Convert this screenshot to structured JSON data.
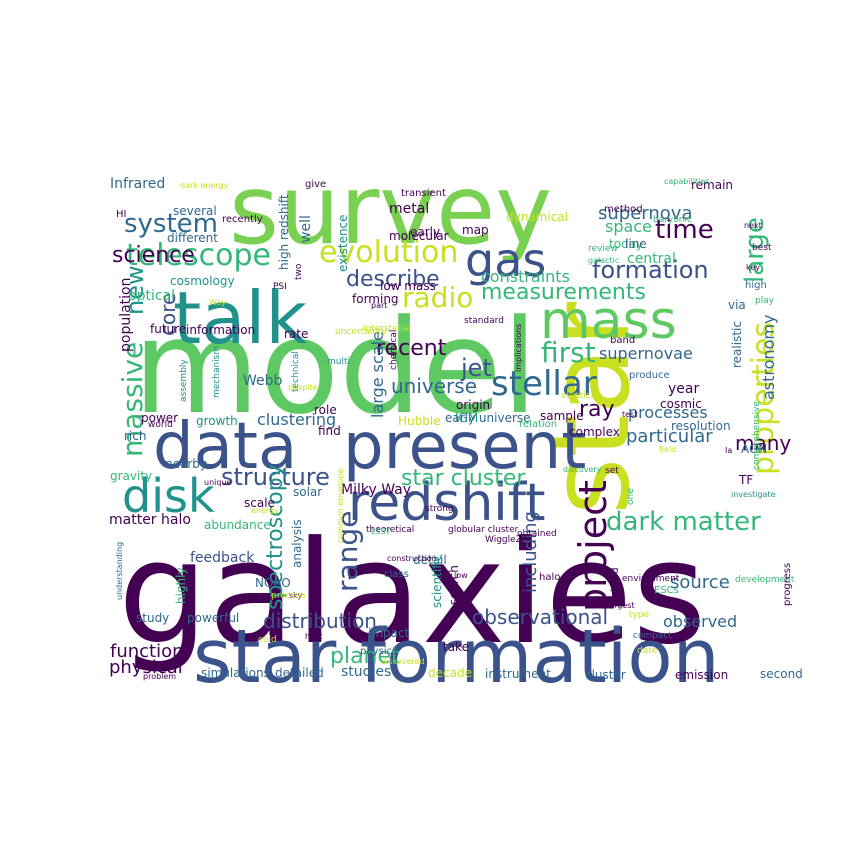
{
  "palette": {
    "dark_purple": "#440154",
    "indigo": "#3b528b",
    "blue": "#31688e",
    "teal": "#21918c",
    "green": "#35b779",
    "light_green": "#5ec962",
    "lime": "#90d743",
    "yellow": "#c8e020",
    "bright_yellow": "#fde725"
  },
  "words": [
    {
      "text": "galaxies",
      "color": "#440154"
    },
    {
      "text": "model",
      "color": "#5ec962"
    },
    {
      "text": "star",
      "color": "#c8e020"
    },
    {
      "text": "survey",
      "color": "#7ad151"
    },
    {
      "text": "star formation",
      "color": "#3b528b"
    },
    {
      "text": "present",
      "color": "#3b528b"
    },
    {
      "text": "data",
      "color": "#3b528b"
    },
    {
      "text": "talk",
      "color": "#21918c"
    },
    {
      "text": "redshift",
      "color": "#3b528b"
    },
    {
      "text": "mass",
      "color": "#5ec962"
    },
    {
      "text": "disk",
      "color": "#21918c"
    },
    {
      "text": "gas",
      "color": "#3b528b"
    },
    {
      "text": "evolution",
      "color": "#c8e020"
    },
    {
      "text": "telescope",
      "color": "#35b779"
    },
    {
      "text": "stellar",
      "color": "#31688e"
    },
    {
      "text": "project",
      "color": "#440154"
    },
    {
      "text": "large",
      "color": "#35b779"
    },
    {
      "text": "properties",
      "color": "#c8e020"
    },
    {
      "text": "formation",
      "color": "#3b528b"
    },
    {
      "text": "system",
      "color": "#31688e"
    },
    {
      "text": "time",
      "color": "#440154"
    },
    {
      "text": "massive",
      "color": "#35b779"
    },
    {
      "text": "first",
      "color": "#35b779"
    },
    {
      "text": "radio",
      "color": "#c8e020"
    },
    {
      "text": "measurements",
      "color": "#35b779"
    },
    {
      "text": "dark matter",
      "color": "#35b779"
    },
    {
      "text": "structure",
      "color": "#3b528b"
    },
    {
      "text": "star cluster",
      "color": "#35b779"
    },
    {
      "text": "range",
      "color": "#3b528b"
    },
    {
      "text": "spectroscopy",
      "color": "#21918c"
    },
    {
      "text": "distribution",
      "color": "#3b528b"
    },
    {
      "text": "observational",
      "color": "#3b528b"
    },
    {
      "text": "planet",
      "color": "#35b779"
    },
    {
      "text": "science",
      "color": "#440154"
    },
    {
      "text": "new",
      "color": "#21918c"
    },
    {
      "text": "core",
      "color": "#3b528b"
    },
    {
      "text": "describe",
      "color": "#3b528b"
    },
    {
      "text": "recent",
      "color": "#440154"
    },
    {
      "text": "jet",
      "color": "#3b528b"
    },
    {
      "text": "universe",
      "color": "#31688e"
    },
    {
      "text": "ray",
      "color": "#440154"
    },
    {
      "text": "supernova",
      "color": "#31688e"
    },
    {
      "text": "supernovae",
      "color": "#31688e"
    },
    {
      "text": "including",
      "color": "#3b528b"
    },
    {
      "text": "source",
      "color": "#31688e"
    },
    {
      "text": "many",
      "color": "#440154"
    },
    {
      "text": "particular",
      "color": "#31688e"
    },
    {
      "text": "space",
      "color": "#35b779"
    },
    {
      "text": "function",
      "color": "#440154"
    },
    {
      "text": "physical",
      "color": "#440154"
    },
    {
      "text": "observed",
      "color": "#31688e"
    },
    {
      "text": "constraints",
      "color": "#35b779"
    },
    {
      "text": "astronomy",
      "color": "#31688e"
    },
    {
      "text": "clustering",
      "color": "#31688e"
    },
    {
      "text": "processes",
      "color": "#31688e"
    },
    {
      "text": "Webb",
      "color": "#31688e"
    },
    {
      "text": "matter halo",
      "color": "#440154"
    },
    {
      "text": "Milky Way",
      "color": "#440154"
    },
    {
      "text": "large scale",
      "color": "#31688e"
    },
    {
      "text": "Infrared",
      "color": "#31688e"
    },
    {
      "text": "high redshift",
      "color": "#31688e"
    },
    {
      "text": "optical",
      "color": "#35b779"
    },
    {
      "text": "cosmology",
      "color": "#21918c"
    },
    {
      "text": "well",
      "color": "#31688e"
    },
    {
      "text": "metal",
      "color": "#440154"
    },
    {
      "text": "year",
      "color": "#440154"
    },
    {
      "text": "central",
      "color": "#35b779"
    },
    {
      "text": "today",
      "color": "#35b779"
    },
    {
      "text": "recently",
      "color": "#440154"
    },
    {
      "text": "different",
      "color": "#31688e"
    },
    {
      "text": "several",
      "color": "#31688e"
    },
    {
      "text": "future",
      "color": "#440154"
    },
    {
      "text": "population",
      "color": "#440154"
    },
    {
      "text": "information",
      "color": "#440154"
    },
    {
      "text": "rate",
      "color": "#440154"
    },
    {
      "text": "growth",
      "color": "#21918c"
    },
    {
      "text": "power",
      "color": "#440154"
    },
    {
      "text": "rich",
      "color": "#31688e"
    },
    {
      "text": "gravity",
      "color": "#35b779"
    },
    {
      "text": "nearby",
      "color": "#31688e"
    },
    {
      "text": "scale",
      "color": "#440154"
    },
    {
      "text": "solar",
      "color": "#31688e"
    },
    {
      "text": "abundance",
      "color": "#35b779"
    },
    {
      "text": "feedback",
      "color": "#3b528b"
    },
    {
      "text": "detail",
      "color": "#31688e"
    },
    {
      "text": "NOAO",
      "color": "#31688e"
    },
    {
      "text": "study",
      "color": "#31688e"
    },
    {
      "text": "powerful",
      "color": "#31688e"
    },
    {
      "text": "simulations",
      "color": "#31688e"
    },
    {
      "text": "detailed",
      "color": "#31688e"
    },
    {
      "text": "studies",
      "color": "#31688e"
    },
    {
      "text": "decade",
      "color": "#c8e020"
    },
    {
      "text": "instrument",
      "color": "#31688e"
    },
    {
      "text": "cluster",
      "color": "#31688e"
    },
    {
      "text": "emission",
      "color": "#440154"
    },
    {
      "text": "second",
      "color": "#31688e"
    },
    {
      "text": "impact",
      "color": "#31688e"
    },
    {
      "text": "physics",
      "color": "#31688e"
    },
    {
      "text": "take",
      "color": "#440154"
    },
    {
      "text": "Hubble",
      "color": "#c8e020"
    },
    {
      "text": "early universe",
      "color": "#31688e"
    },
    {
      "text": "sample",
      "color": "#440154"
    },
    {
      "text": "origin",
      "color": "#440154"
    },
    {
      "text": "IGM",
      "color": "#21918c"
    },
    {
      "text": "relation",
      "color": "#35b779"
    },
    {
      "text": "complex",
      "color": "#440154"
    },
    {
      "text": "produce",
      "color": "#31688e"
    },
    {
      "text": "realistic",
      "color": "#31688e"
    },
    {
      "text": "cosmic",
      "color": "#440154"
    },
    {
      "text": "via",
      "color": "#31688e"
    },
    {
      "text": "high",
      "color": "#31688e"
    },
    {
      "text": "band",
      "color": "#440154"
    },
    {
      "text": "AGN",
      "color": "#31688e"
    },
    {
      "text": "TF",
      "color": "#440154"
    },
    {
      "text": "resolution",
      "color": "#31688e"
    },
    {
      "text": "role",
      "color": "#440154"
    },
    {
      "text": "find",
      "color": "#440154"
    },
    {
      "text": "early",
      "color": "#440154"
    },
    {
      "text": "molecular",
      "color": "#440154"
    },
    {
      "text": "map",
      "color": "#440154"
    },
    {
      "text": "dynamical",
      "color": "#c8e020"
    },
    {
      "text": "method",
      "color": "#440154"
    },
    {
      "text": "line",
      "color": "#31688e"
    },
    {
      "text": "remain",
      "color": "#440154"
    },
    {
      "text": "forming",
      "color": "#440154"
    },
    {
      "text": "low mass",
      "color": "#440154"
    },
    {
      "text": "existence",
      "color": "#21918c"
    },
    {
      "text": "transient",
      "color": "#440154"
    },
    {
      "text": "give",
      "color": "#440154"
    },
    {
      "text": "dark energy",
      "color": "#c8e020"
    },
    {
      "text": "HI",
      "color": "#440154"
    },
    {
      "text": "capabilities",
      "color": "#35b779"
    },
    {
      "text": "baryonic",
      "color": "#35b779"
    },
    {
      "text": "next",
      "color": "#440154"
    },
    {
      "text": "review",
      "color": "#35b779"
    },
    {
      "text": "best",
      "color": "#440154"
    },
    {
      "text": "galactic",
      "color": "#35b779"
    },
    {
      "text": "key",
      "color": "#440154"
    },
    {
      "text": "play",
      "color": "#35b779"
    },
    {
      "text": "Way",
      "color": "#c8e020"
    },
    {
      "text": "PSI",
      "color": "#440154"
    },
    {
      "text": "two",
      "color": "#440154"
    },
    {
      "text": "uncertainty",
      "color": "#c8e020"
    },
    {
      "text": "mechanism",
      "color": "#21918c"
    },
    {
      "text": "assembly",
      "color": "#21918c"
    },
    {
      "text": "despite",
      "color": "#c8e020"
    },
    {
      "text": "technical",
      "color": "#21918c"
    },
    {
      "text": "multi",
      "color": "#21918c"
    },
    {
      "text": "part",
      "color": "#440154"
    },
    {
      "text": "interstellar",
      "color": "#c8e020"
    },
    {
      "text": "standard",
      "color": "#440154"
    },
    {
      "text": "chemical",
      "color": "#440154"
    },
    {
      "text": "implications",
      "color": "#440154"
    },
    {
      "text": "elliptical",
      "color": "#c8e020"
    },
    {
      "text": "world",
      "color": "#440154"
    },
    {
      "text": "WiggleZ",
      "color": "#440154"
    },
    {
      "text": "common envelope",
      "color": "#c8e020"
    },
    {
      "text": "test",
      "color": "#440154"
    },
    {
      "text": "comprehensive",
      "color": "#35b779"
    },
    {
      "text": "field",
      "color": "#c8e020"
    },
    {
      "text": "Ia",
      "color": "#440154"
    },
    {
      "text": "discovery",
      "color": "#35b779"
    },
    {
      "text": "set",
      "color": "#440154"
    },
    {
      "text": "investigate",
      "color": "#21918c"
    },
    {
      "text": "one",
      "color": "#35b779"
    },
    {
      "text": "strong",
      "color": "#440154"
    },
    {
      "text": "globular cluster",
      "color": "#440154"
    },
    {
      "text": "theoretical",
      "color": "#440154"
    },
    {
      "text": "obtained",
      "color": "#440154"
    },
    {
      "text": "LSST",
      "color": "#35b779"
    },
    {
      "text": "unique",
      "color": "#440154"
    },
    {
      "text": "energy",
      "color": "#c8e020"
    },
    {
      "text": "understanding",
      "color": "#31688e"
    },
    {
      "text": "highly",
      "color": "#35b779"
    },
    {
      "text": "analysis",
      "color": "#31688e"
    },
    {
      "text": "construction",
      "color": "#440154"
    },
    {
      "text": "real",
      "color": "#440154"
    },
    {
      "text": "scientific",
      "color": "#21918c"
    },
    {
      "text": "search",
      "color": "#440154"
    },
    {
      "text": "halo",
      "color": "#440154"
    },
    {
      "text": "low",
      "color": "#440154"
    },
    {
      "text": "class",
      "color": "#31688e"
    },
    {
      "text": "sky",
      "color": "#440154"
    },
    {
      "text": "process",
      "color": "#c8e020"
    },
    {
      "text": "cold",
      "color": "#c8e020"
    },
    {
      "text": "host",
      "color": "#440154"
    },
    {
      "text": "discovered",
      "color": "#c8e020"
    },
    {
      "text": "problem",
      "color": "#440154"
    },
    {
      "text": "build",
      "color": "#440154"
    },
    {
      "text": "environment",
      "color": "#440154"
    },
    {
      "text": "ESCs",
      "color": "#35b779"
    },
    {
      "text": "development",
      "color": "#35b779"
    },
    {
      "text": "progress",
      "color": "#440154"
    },
    {
      "text": "type",
      "color": "#c8e020"
    },
    {
      "text": "largest",
      "color": "#440154"
    },
    {
      "text": "compact",
      "color": "#31688e"
    },
    {
      "text": "date",
      "color": "#c8e020"
    }
  ]
}
